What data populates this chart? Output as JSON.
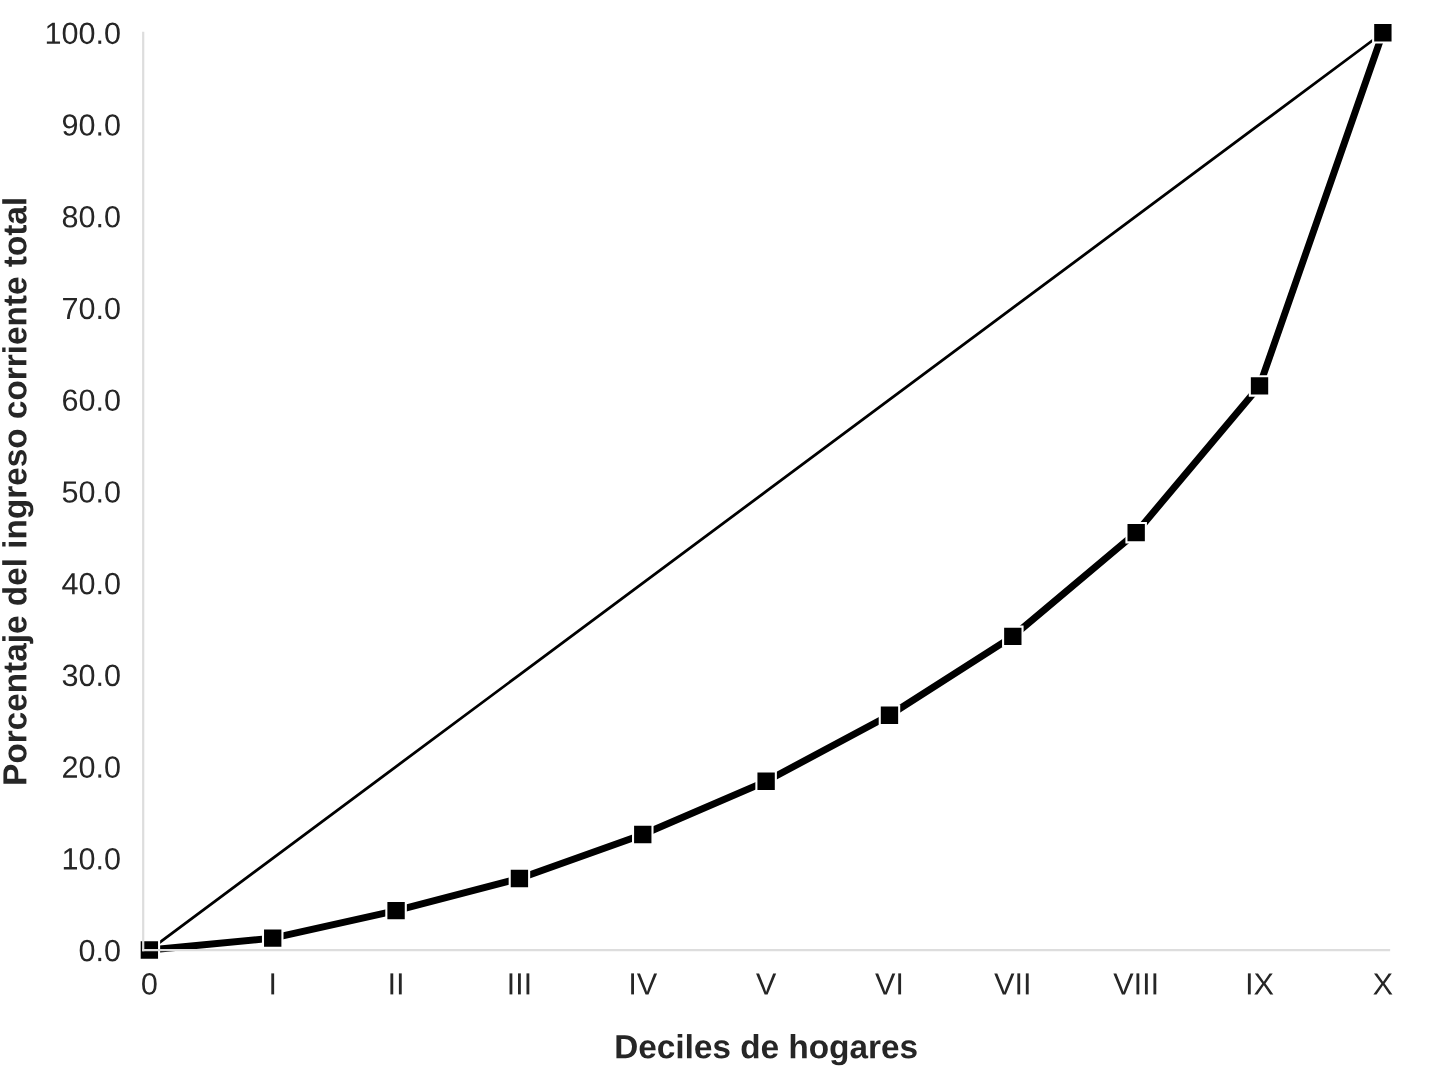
{
  "chart_data": {
    "type": "line",
    "xlabel": "Deciles de hogares",
    "ylabel": "Porcentaje del ingreso corriente total",
    "categories": [
      "0",
      "I",
      "II",
      "III",
      "IV",
      "V",
      "VI",
      "VII",
      "VIII",
      "IX",
      "X"
    ],
    "series": [
      {
        "color": "#000000",
        "values": [
          0,
          10,
          20,
          30,
          40,
          50,
          60,
          70,
          80,
          90,
          100
        ],
        "marker": "none"
      },
      {
        "color": "#000000",
        "values": [
          0,
          1.3,
          4.3,
          7.8,
          12.6,
          18.4,
          25.6,
          34.2,
          45.5,
          61.5,
          100
        ],
        "marker": "square"
      }
    ],
    "ylim": [
      0,
      100
    ],
    "yticks": [
      {
        "value": 0,
        "label": "0.0"
      },
      {
        "value": 10,
        "label": "10.0"
      },
      {
        "value": 20,
        "label": "20.0"
      },
      {
        "value": 30,
        "label": "30.0"
      },
      {
        "value": 40,
        "label": "40.0"
      },
      {
        "value": 50,
        "label": "50.0"
      },
      {
        "value": 60,
        "label": "60.0"
      },
      {
        "value": 70,
        "label": "70.0"
      },
      {
        "value": 80,
        "label": "80.0"
      },
      {
        "value": 90,
        "label": "90.0"
      },
      {
        "value": 100,
        "label": "100.0"
      }
    ],
    "grid": false
  }
}
